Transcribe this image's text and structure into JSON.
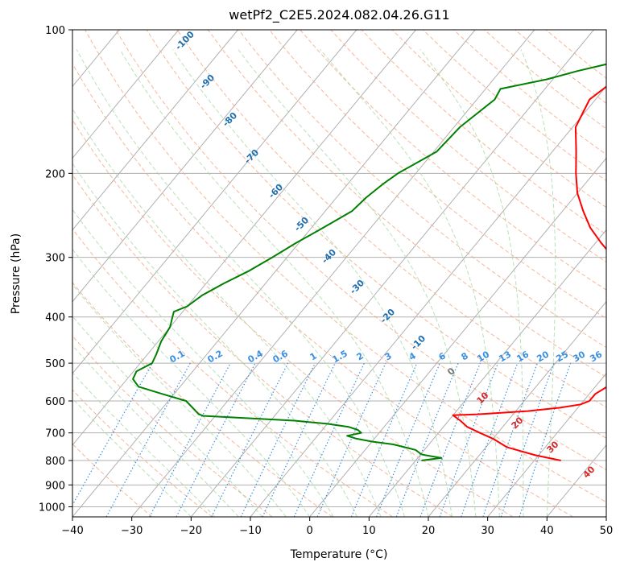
{
  "chart_data": {
    "type": "line",
    "title": "wetPf2_C2E5.2024.082.04.26.G11",
    "xlabel": "Temperature (°C)",
    "ylabel": "Pressure (hPa)",
    "xlim": [
      -40,
      50
    ],
    "ylim": [
      1050,
      100
    ],
    "y_scale": "log",
    "grid": true,
    "x_ticks": [
      -40,
      -30,
      -20,
      -10,
      0,
      10,
      20,
      30,
      40,
      50
    ],
    "y_ticks": [
      100,
      200,
      300,
      400,
      500,
      600,
      700,
      800,
      900,
      1000
    ],
    "series": [
      {
        "color": "#ff0000",
        "points": [
          [
            800,
            34.5
          ],
          [
            780,
            29.5
          ],
          [
            750,
            23.5
          ],
          [
            720,
            20
          ],
          [
            700,
            17
          ],
          [
            680,
            14
          ],
          [
            660,
            12
          ],
          [
            643,
            10
          ],
          [
            640,
            14
          ],
          [
            630,
            22
          ],
          [
            620,
            27
          ],
          [
            610,
            30
          ],
          [
            600,
            31
          ],
          [
            580,
            31
          ],
          [
            560,
            32
          ],
          [
            540,
            32
          ],
          [
            520,
            32.5
          ],
          [
            500,
            33
          ],
          [
            480,
            33
          ],
          [
            460,
            33.5
          ],
          [
            440,
            33
          ],
          [
            420,
            32
          ],
          [
            410,
            31.5
          ],
          [
            400,
            31
          ],
          [
            390,
            30
          ],
          [
            380,
            28
          ],
          [
            370,
            26.5
          ],
          [
            360,
            24.5
          ],
          [
            340,
            22
          ],
          [
            320,
            19
          ],
          [
            300,
            15
          ],
          [
            280,
            11
          ],
          [
            260,
            7
          ],
          [
            240,
            3.5
          ],
          [
            220,
            0
          ],
          [
            200,
            -3
          ],
          [
            180,
            -6
          ],
          [
            160,
            -9.5
          ],
          [
            140,
            -11
          ],
          [
            128,
            -9.5
          ],
          [
            118,
            -5.5
          ],
          [
            112,
            -3.5
          ]
        ]
      },
      {
        "color": "#008000",
        "points": [
          [
            800,
            11
          ],
          [
            790,
            14
          ],
          [
            780,
            11
          ],
          [
            776,
            10
          ],
          [
            770,
            9.5
          ],
          [
            760,
            8.5
          ],
          [
            740,
            4
          ],
          [
            730,
            0
          ],
          [
            720,
            -3
          ],
          [
            710,
            -5
          ],
          [
            700,
            -3
          ],
          [
            690,
            -4
          ],
          [
            680,
            -6
          ],
          [
            670,
            -10
          ],
          [
            660,
            -16
          ],
          [
            645,
            -32
          ],
          [
            640,
            -33
          ],
          [
            600,
            -37
          ],
          [
            580,
            -42
          ],
          [
            560,
            -47
          ],
          [
            540,
            -49
          ],
          [
            520,
            -49.5
          ],
          [
            500,
            -48
          ],
          [
            480,
            -48.5
          ],
          [
            450,
            -49.5
          ],
          [
            420,
            -50
          ],
          [
            400,
            -51
          ],
          [
            390,
            -51.5
          ],
          [
            380,
            -50
          ],
          [
            360,
            -49
          ],
          [
            340,
            -47
          ],
          [
            320,
            -44.5
          ],
          [
            300,
            -42.5
          ],
          [
            280,
            -40.5
          ],
          [
            260,
            -38
          ],
          [
            240,
            -35.5
          ],
          [
            225,
            -35
          ],
          [
            210,
            -34
          ],
          [
            200,
            -33
          ],
          [
            180,
            -29.5
          ],
          [
            160,
            -29
          ],
          [
            140,
            -27
          ],
          [
            133,
            -27.5
          ],
          [
            127,
            -21
          ],
          [
            122,
            -17
          ],
          [
            118,
            -13
          ],
          [
            116,
            -12
          ],
          [
            112,
            -13
          ],
          [
            105,
            -12
          ],
          [
            100,
            -10.5
          ]
        ]
      }
    ],
    "dry_adiabat_labels": [
      "-100",
      "-90",
      "-80",
      "-70",
      "-60",
      "-50",
      "-40",
      "-30",
      "-20",
      "-10",
      "0",
      "10",
      "20",
      "30",
      "40"
    ],
    "mixing_ratio_labels": [
      "0.1",
      "0.2",
      "0.4",
      "0.6",
      "1",
      "1.5",
      "2",
      "3",
      "4",
      "6",
      "8",
      "10",
      "13",
      "16",
      "20",
      "25",
      "30",
      "36"
    ],
    "colors": {
      "isotherm": "#b0b0b0",
      "dry_adiabat": "#f4a582",
      "moist_adiabat": "#a6d8a6",
      "mixing_ratio": "#3a8fe0",
      "dry_label_cold": "#1f6fb0",
      "dry_label_neutral": "#777777",
      "dry_label_warm": "#d62728"
    }
  }
}
